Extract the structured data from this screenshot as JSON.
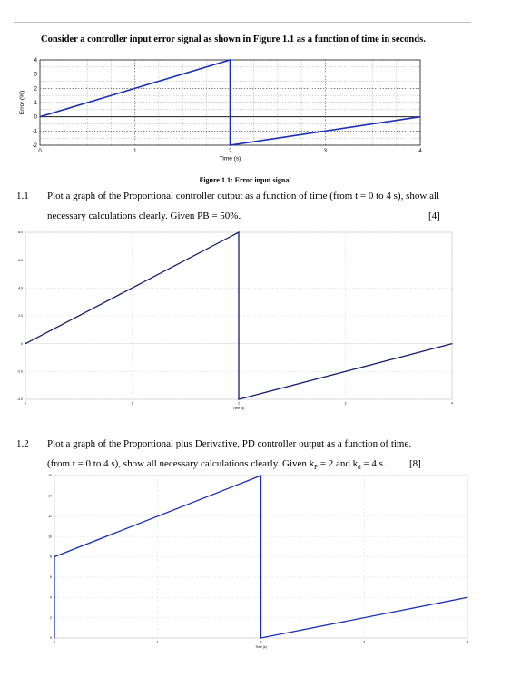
{
  "intro": "Consider a controller input error signal as shown in Figure 1.1 as a function of time in seconds.",
  "figure_caption": "Figure 1.1: Error input signal",
  "questions": [
    {
      "number": "1.1",
      "line1": "Plot a graph of the Proportional controller output as a function of time (from t = 0 to 4 s), show all",
      "line2": "necessary calculations clearly. Given PB = 50%.",
      "marks": "[4]"
    },
    {
      "number": "1.2",
      "line1": "Plot a graph of the Proportional plus Derivative, PD controller output as a function of time.",
      "line2": "(from t = 0 to 4 s), show all necessary calculations clearly. Given k",
      "marks": "[8]",
      "kp_sub": "P",
      "kd_sub": "d",
      "mid": " = 2 and k",
      "tail": " = 4 s."
    }
  ],
  "chart_data": [
    {
      "type": "line",
      "title": "",
      "xlabel": "Time (s)",
      "ylabel": "Error (%)",
      "xlim": [
        0,
        4
      ],
      "ylim": [
        -2,
        4
      ],
      "x_ticks": [
        "0",
        "1",
        "2",
        "3",
        "4"
      ],
      "y_ticks": [
        "-2",
        "-1",
        "0",
        "1",
        "2",
        "3",
        "4"
      ],
      "grid": true,
      "line_color": "#1a2fb8",
      "series": [
        {
          "x": [
            0,
            2,
            2,
            4
          ],
          "y": [
            0,
            4,
            -2,
            0
          ]
        }
      ]
    },
    {
      "type": "line",
      "title": "",
      "xlabel": "Time (s)",
      "ylabel": "",
      "xlim": [
        0,
        4
      ],
      "ylim": [
        -4,
        8
      ],
      "x_ticks": [
        "0",
        "1",
        "2",
        "3",
        "4"
      ],
      "y_ticks": [
        "-4.0",
        "-2.0",
        "0",
        "2.0",
        "4.0",
        "6.0",
        "8.0"
      ],
      "grid": true,
      "line_color": "#14206e",
      "series": [
        {
          "x": [
            0,
            2,
            2,
            4
          ],
          "y": [
            0,
            8,
            -4,
            0
          ]
        }
      ]
    },
    {
      "type": "line",
      "title": "",
      "xlabel": "Time (s)",
      "ylabel": "",
      "xlim": [
        0,
        4
      ],
      "ylim": [
        0,
        16
      ],
      "x_ticks": [
        "0",
        "1",
        "2",
        "3",
        "4"
      ],
      "y_ticks": [
        "0",
        "2",
        "4",
        "6",
        "8",
        "10",
        "12",
        "14",
        "16"
      ],
      "grid": true,
      "line_color": "#1a2fb8",
      "series": [
        {
          "x": [
            0,
            0,
            2,
            2,
            4
          ],
          "y": [
            0,
            8,
            16,
            0,
            4
          ]
        }
      ]
    }
  ]
}
